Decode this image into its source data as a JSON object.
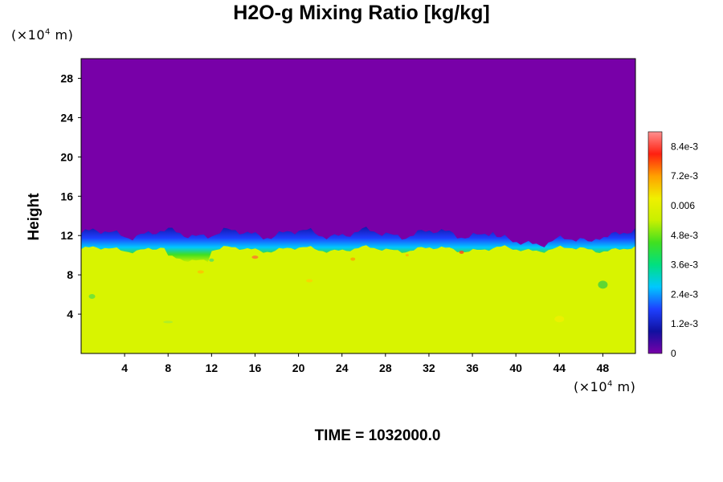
{
  "chart_data": {
    "type": "heatmap",
    "title": "H2O-g Mixing Ratio [kg/kg]",
    "xlabel": "",
    "ylabel": "Height",
    "x_unit": {
      "prefix": "(×10",
      "exp": "4",
      "suffix": " m)"
    },
    "y_unit": {
      "prefix": "(×10",
      "exp": "4",
      "suffix": " m)"
    },
    "xlim": [
      0,
      51
    ],
    "ylim": [
      0,
      30
    ],
    "x_ticks": [
      4,
      8,
      12,
      16,
      20,
      24,
      28,
      32,
      36,
      40,
      44,
      48
    ],
    "x_tick_labels": [
      "4",
      "8",
      "12",
      "16",
      "20",
      "24",
      "28",
      "32",
      "36",
      "40",
      "44",
      "48"
    ],
    "y_ticks": [
      4,
      8,
      12,
      16,
      20,
      24,
      28
    ],
    "y_tick_labels": [
      "4",
      "8",
      "12",
      "16",
      "20",
      "24",
      "28"
    ],
    "colorbar": {
      "min": 0,
      "max": 0.009,
      "ticks": [
        0,
        0.0012,
        0.0024,
        0.0036,
        0.0048,
        0.006,
        0.0072,
        0.0084
      ],
      "tick_labels": [
        "0",
        "1.2e-3",
        "2.4e-3",
        "3.6e-3",
        "4.8e-3",
        "0.006",
        "7.2e-3",
        "8.4e-3"
      ],
      "colormap": [
        "#7800a8",
        "#1010a0",
        "#1e40ff",
        "#00c8ff",
        "#00e080",
        "#40e020",
        "#c8f000",
        "#f0f000",
        "#ffa000",
        "#ff2010",
        "#ff9090"
      ]
    },
    "field_description": {
      "upper_region_value": 0,
      "upper_region_color": "#7800a8",
      "lower_region_value_approx": 0.0058,
      "lower_region_color": "#d8f400",
      "boundary_height_approx": [
        10,
        12.5
      ]
    },
    "time_label": "TIME = 1032000.0"
  }
}
